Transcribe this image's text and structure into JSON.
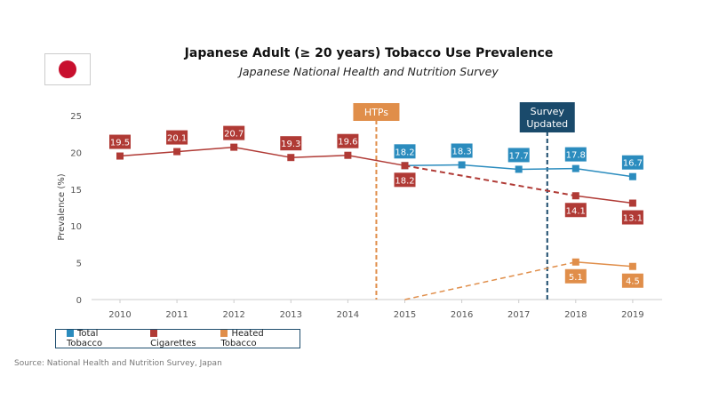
{
  "title": "Japanese Adult (≥ 20 years) Tobacco Use Prevalence",
  "subtitle": "Japanese National Health and Nutrition Survey",
  "flag": "japan-flag",
  "source": "Source: National Health and Nutrition Survey, Japan",
  "chart_data": {
    "type": "line",
    "ylabel": "Prevalence (%)",
    "ylim": [
      0,
      25
    ],
    "yticks": [
      0,
      5,
      10,
      15,
      20,
      25
    ],
    "x": [
      2010,
      2011,
      2012,
      2013,
      2014,
      2015,
      2016,
      2017,
      2018,
      2019
    ],
    "series": [
      {
        "name": "Total Tobacco",
        "color": "#2b8cbe",
        "x": [
          2015,
          2016,
          2017,
          2018,
          2019
        ],
        "values": [
          18.2,
          18.3,
          17.7,
          17.8,
          16.7
        ]
      },
      {
        "name": "Cigarettes",
        "color": "#b03a35",
        "x": [
          2010,
          2011,
          2012,
          2013,
          2014,
          2015,
          2018,
          2019
        ],
        "values": [
          19.5,
          20.1,
          20.7,
          19.3,
          19.6,
          18.2,
          14.1,
          13.1
        ],
        "dashed_segment": [
          2015,
          2018
        ]
      },
      {
        "name": "Heated Tobacco",
        "color": "#e08e4a",
        "x": [
          2018,
          2019
        ],
        "values": [
          5.1,
          4.5
        ],
        "dashed_from": {
          "x": 2015,
          "y": 0
        }
      }
    ],
    "annotations": [
      {
        "label": "HTPs",
        "x": 2014.5,
        "color": "#e08e4a"
      },
      {
        "label": "Survey Updated",
        "x": 2017.5,
        "color": "#1a4a6b"
      }
    ],
    "legend": "bottom-left"
  }
}
